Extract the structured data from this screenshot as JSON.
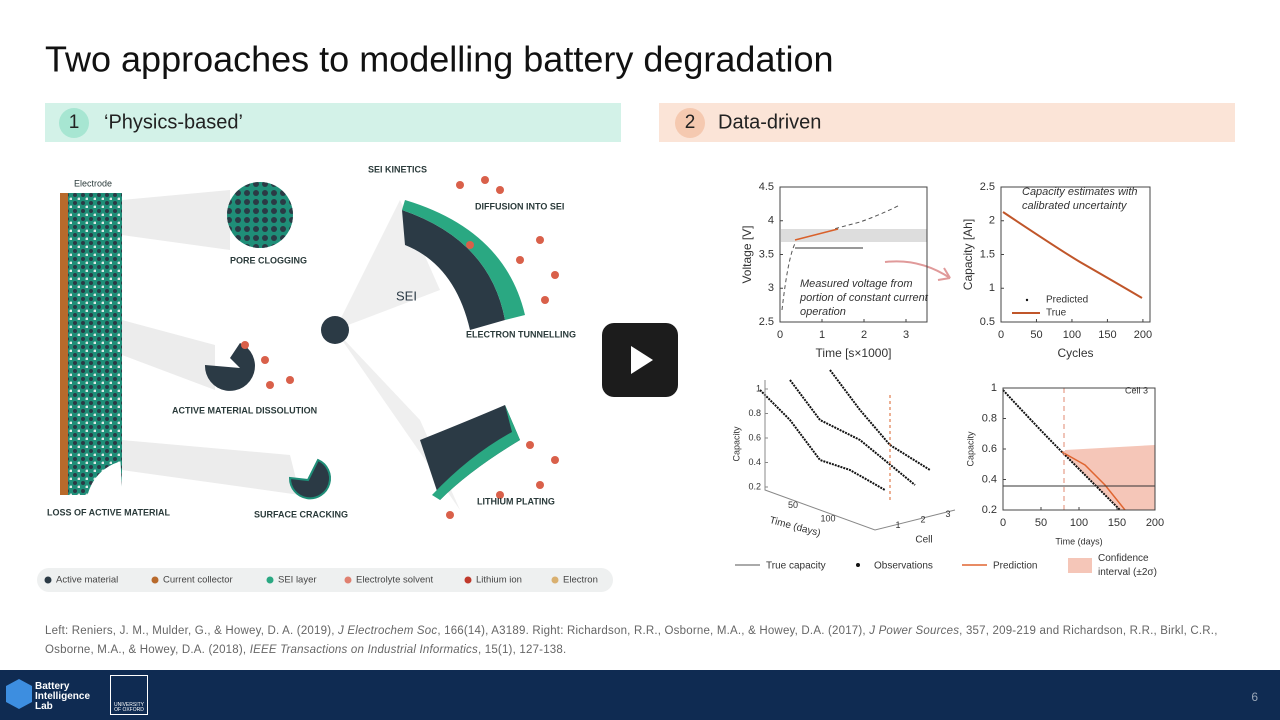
{
  "title": "Two approaches to modelling battery degradation",
  "sections": [
    {
      "number": "1",
      "label": "‘Physics-based’"
    },
    {
      "number": "2",
      "label": "Data-driven"
    }
  ],
  "physics_figure": {
    "labels": [
      "Electrode",
      "SEI KINETICS",
      "DIFFUSION INTO SEI",
      "PORE CLOGGING",
      "SEI",
      "ELECTRON TUNNELLING",
      "ACTIVE MATERIAL DISSOLUTION",
      "LITHIUM PLATING",
      "LOSS OF ACTIVE MATERIAL",
      "SURFACE CRACKING"
    ],
    "legend": [
      "Active material",
      "Current collector",
      "SEI layer",
      "Electrolyte solvent",
      "Lithium ion",
      "Electron"
    ]
  },
  "voltage_plot": {
    "xlabel": "Time [s×1000]",
    "ylabel": "Voltage [V]",
    "xlim": [
      0,
      3.5
    ],
    "ylim": [
      2.5,
      4.5
    ],
    "xticks": [
      0,
      1,
      2,
      3
    ],
    "yticks": [
      2.5,
      3,
      3.5,
      4,
      4.5
    ],
    "annotation": "Measured voltage from portion of constant current operation"
  },
  "capacity_plot": {
    "xlabel": "Cycles",
    "ylabel": "Capacity [Ah]",
    "xlim": [
      0,
      210
    ],
    "ylim": [
      0.5,
      2.5
    ],
    "xticks": [
      0,
      50,
      100,
      150,
      200
    ],
    "yticks": [
      0.5,
      1,
      1.5,
      2,
      2.5
    ],
    "annotation": "Capacity estimates with calibrated uncertainty",
    "legend": [
      "Predicted",
      "True"
    ]
  },
  "surface_plot": {
    "ylabel": "Capacity",
    "ylim": [
      0.2,
      1
    ],
    "yticks": [
      0.2,
      0.4,
      0.6,
      0.8,
      1
    ],
    "xlabel": "Time (days)",
    "xticks": [
      50,
      100
    ],
    "zlabel": "Cell",
    "zticks": [
      1,
      2,
      3
    ]
  },
  "cell_plot": {
    "title": "Cell 3",
    "ylabel": "Capacity",
    "xlabel": "Time (days)",
    "xlim": [
      0,
      200
    ],
    "ylim": [
      0.2,
      1
    ],
    "xticks": [
      0,
      50,
      100,
      150,
      200
    ],
    "yticks": [
      0.2,
      0.4,
      0.6,
      0.8,
      1
    ]
  },
  "data_legend": [
    "True capacity",
    "Observations",
    "Prediction",
    "Confidence interval (±2σ)"
  ],
  "citation": [
    "Left: Reniers, J. M., Mulder, G., & Howey, D. A. (2019), ",
    "J Electrochem Soc",
    ", 166(14), A3189. Right: Richardson, R.R., Osborne, M.A., & Howey, D.A. (2017), ",
    "J Power Sources",
    ", 357, 209-219 and Richardson, R.R., Birkl, C.R., Osborne, M.A., & Howey, D.A. (2018), ",
    "IEEE Transactions on Industrial Informatics",
    ", 15(1), 127-138."
  ],
  "footer": {
    "lab": "Battery Intelligence Lab",
    "university": "UNIVERSITY OF OXFORD",
    "page": "6"
  }
}
